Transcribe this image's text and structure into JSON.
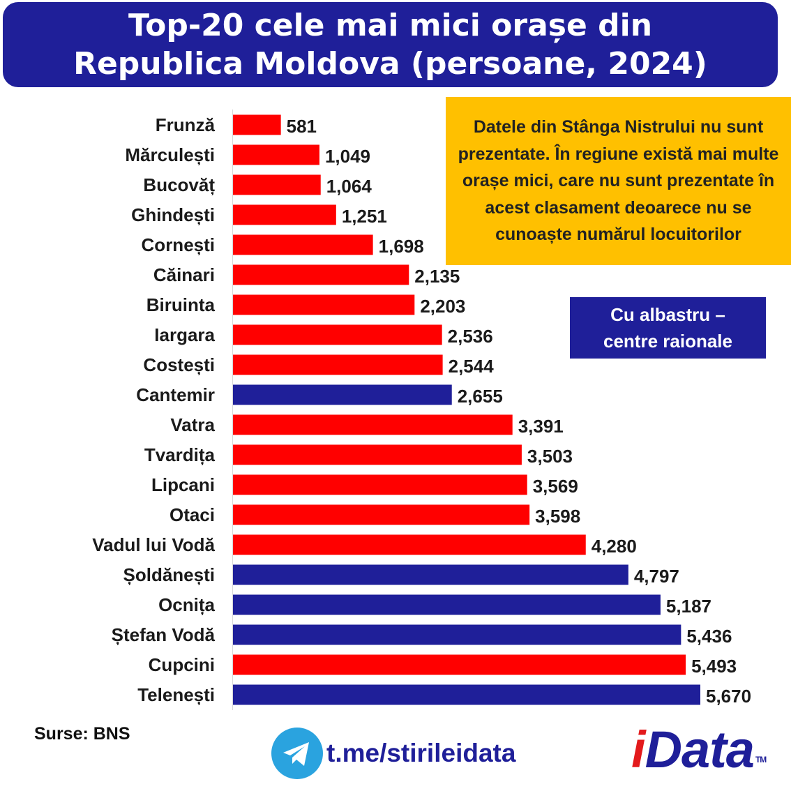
{
  "header": {
    "title": "Top-20 cele mai mici orașe din Republica Moldova (persoane, 2024)"
  },
  "note": {
    "text": "Datele din Stânga Nistrului nu sunt prezentate. În regiune există mai multe orașe mici, care nu sunt prezentate în acest clasament deoarece nu se cunoaște numărul locuitorilor"
  },
  "legend": {
    "text": "Cu albastru – centre raionale"
  },
  "footer": {
    "source": "Surse: BNS",
    "telegram_icon": "telegram-icon",
    "link": "t.me/stirileidata",
    "logo_text": "iData",
    "logo_tm": "TM"
  },
  "colors": {
    "title_bg": "#1F1F99",
    "bar_red": "#FF0000",
    "bar_blue": "#1F1F99",
    "note_bg": "#FFC000"
  },
  "chart_data": {
    "type": "bar",
    "orientation": "horizontal",
    "title": "Top-20 cele mai mici orașe din Republica Moldova (persoane, 2024)",
    "categories": [
      "Frunză",
      "Mărculești",
      "Bucovăț",
      "Ghindești",
      "Cornești",
      "Căinari",
      "Biruinta",
      "Iargara",
      "Costești",
      "Cantemir",
      "Vatra",
      "Tvardița",
      "Lipcani",
      "Otaci",
      "Vadul lui Vodă",
      "Șoldănești",
      "Ocnița",
      "Ștefan Vodă",
      "Cupcini",
      "Telenești"
    ],
    "values": [
      581,
      1049,
      1064,
      1251,
      1698,
      2135,
      2203,
      2536,
      2544,
      2655,
      3391,
      3503,
      3569,
      3598,
      4280,
      4797,
      5187,
      5436,
      5493,
      5670
    ],
    "value_labels": [
      "581",
      "1,049",
      "1,064",
      "1,251",
      "1,698",
      "2,135",
      "2,203",
      "2,536",
      "2,544",
      "2,655",
      "3,391",
      "3,503",
      "3,569",
      "3,598",
      "4,280",
      "4,797",
      "5,187",
      "5,436",
      "5,493",
      "5,670"
    ],
    "raion_centre": [
      false,
      false,
      false,
      false,
      false,
      false,
      false,
      false,
      false,
      true,
      false,
      false,
      false,
      false,
      false,
      true,
      true,
      true,
      false,
      true
    ],
    "xlim": [
      0,
      5670
    ],
    "grid": false,
    "legend": "Cu albastru – centre raionale"
  }
}
